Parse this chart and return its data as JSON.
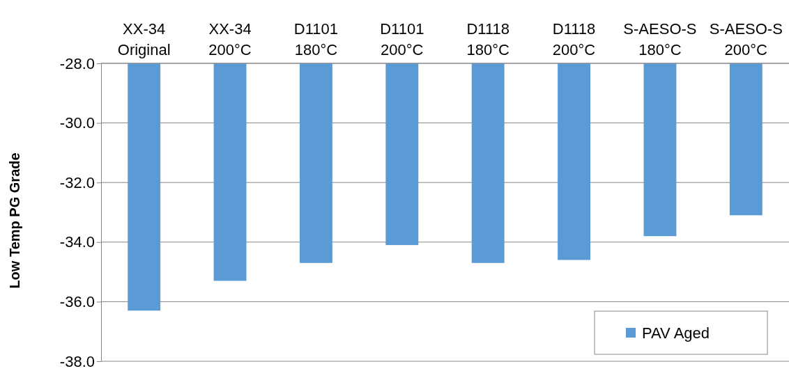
{
  "chart_data": {
    "type": "bar",
    "ylabel": "Low Temp PG Grade",
    "categories": [
      "XX-34\nOriginal",
      "XX-34\n200°C",
      "D1101\n180°C",
      "D1101\n200°C",
      "D1118\n180°C",
      "D1118\n200°C",
      "S-AESO-S\n180°C",
      "S-AESO-S\n200°C"
    ],
    "series": [
      {
        "name": "PAV Aged",
        "color": "#5b9bd5",
        "values": [
          -36.3,
          -35.3,
          -34.7,
          -34.1,
          -34.7,
          -34.6,
          -33.8,
          -33.1
        ]
      }
    ],
    "ylim": [
      -38,
      -28
    ],
    "yticks": [
      {
        "value": -38,
        "label": "-38.0"
      },
      {
        "value": -36,
        "label": "-36.0"
      },
      {
        "value": -34,
        "label": "-34.0"
      },
      {
        "value": -32,
        "label": "-32.0"
      },
      {
        "value": -30,
        "label": "-30.0"
      },
      {
        "value": -28,
        "label": "-28.0"
      }
    ],
    "grid": "y",
    "legend": "bottom right"
  }
}
